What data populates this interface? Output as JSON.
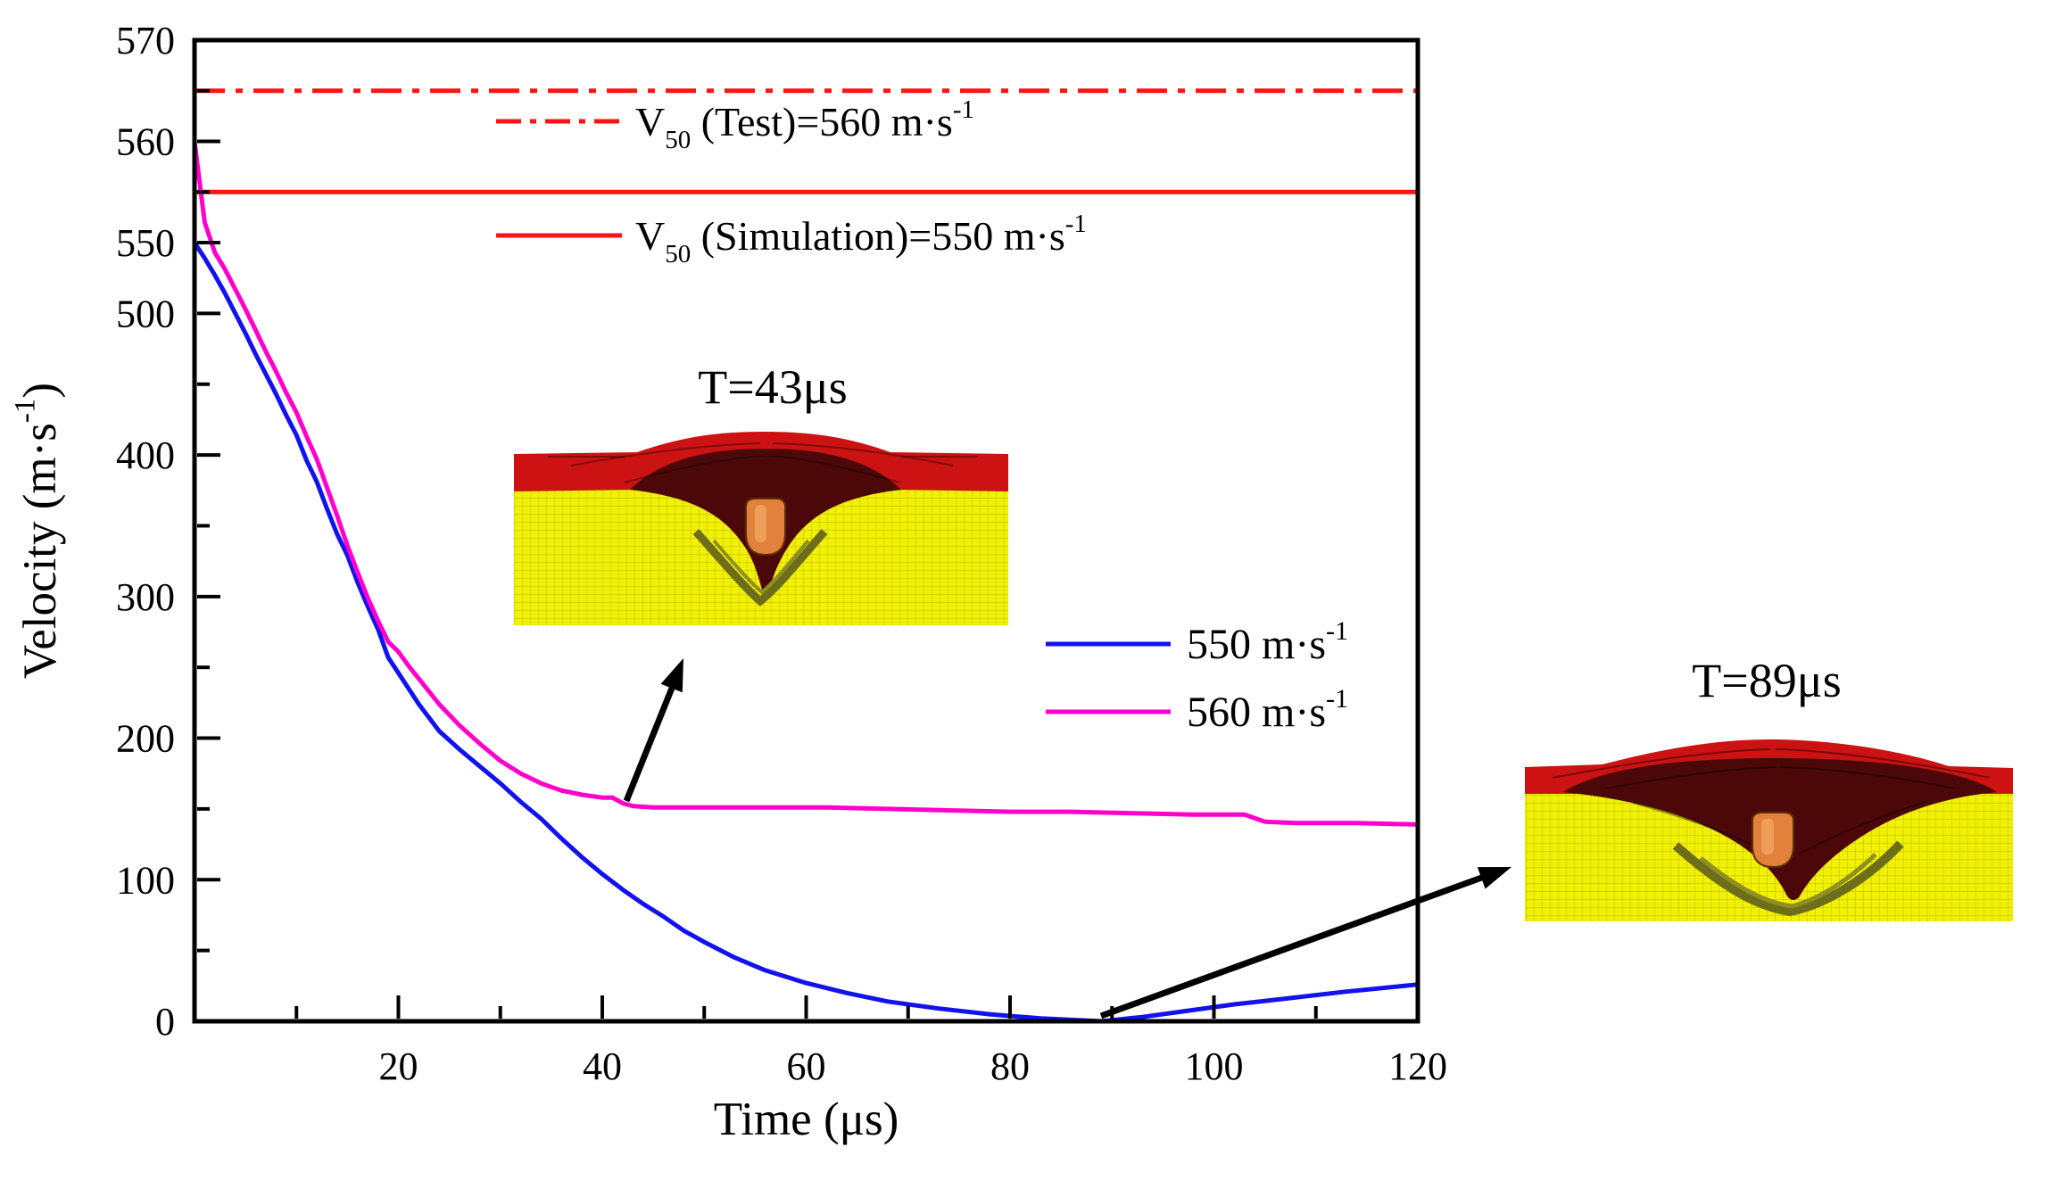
{
  "chart_data": {
    "type": "line",
    "title": "",
    "xlabel": "Time (μs)",
    "ylabel": "Velocity (m·s⁻¹)",
    "xlabel_parts": [
      {
        "t": "Time (μs)"
      }
    ],
    "ylabel_parts": [
      {
        "t": "Velocity (m·s"
      },
      {
        "type": "sup",
        "t": "-1"
      },
      {
        "t": ")"
      }
    ],
    "x_axis": {
      "min": 0,
      "max": 120,
      "major_ticks": [
        20,
        40,
        60,
        80,
        100,
        120
      ],
      "minor_ticks": [
        10,
        30,
        50,
        70,
        90,
        110
      ]
    },
    "y_axis": {
      "min": 0,
      "max": 570,
      "break_at": 550,
      "note": "scale magnified above 550",
      "major_ticks": [
        0,
        100,
        200,
        300,
        400,
        500,
        550,
        560,
        570
      ],
      "minor_ticks": [
        50,
        150,
        250,
        350,
        450,
        555,
        565
      ]
    },
    "grid": false,
    "legend_position": "center-right",
    "series": [
      {
        "name": "550 m·s⁻¹",
        "label_parts": [
          {
            "t": "550 m·s"
          },
          {
            "type": "sup",
            "t": "-1"
          }
        ],
        "color": "#1212ef",
        "points": [
          [
            0,
            550
          ],
          [
            1,
            539
          ],
          [
            2,
            527
          ],
          [
            3,
            514
          ],
          [
            4,
            500
          ],
          [
            5,
            486
          ],
          [
            6,
            471
          ],
          [
            7,
            457
          ],
          [
            8,
            443
          ],
          [
            9,
            428
          ],
          [
            10,
            414
          ],
          [
            11,
            396
          ],
          [
            12,
            381
          ],
          [
            13,
            362
          ],
          [
            14,
            344
          ],
          [
            15,
            329
          ],
          [
            16,
            310
          ],
          [
            17,
            293
          ],
          [
            18,
            277
          ],
          [
            19,
            257
          ],
          [
            20,
            246
          ],
          [
            22,
            224
          ],
          [
            24,
            205
          ],
          [
            26,
            192
          ],
          [
            28,
            180
          ],
          [
            30,
            168
          ],
          [
            32,
            155
          ],
          [
            34,
            143
          ],
          [
            36,
            129
          ],
          [
            38,
            116
          ],
          [
            40,
            104
          ],
          [
            42,
            93
          ],
          [
            44,
            83
          ],
          [
            46,
            74
          ],
          [
            48,
            64
          ],
          [
            50,
            56
          ],
          [
            53,
            45
          ],
          [
            56,
            36
          ],
          [
            60,
            27
          ],
          [
            64,
            20
          ],
          [
            68,
            14
          ],
          [
            73,
            9
          ],
          [
            78,
            5
          ],
          [
            83,
            2
          ],
          [
            86,
            1
          ],
          [
            89,
            0
          ],
          [
            93,
            3
          ],
          [
            97,
            7
          ],
          [
            102,
            12
          ],
          [
            107,
            16
          ],
          [
            113,
            21
          ],
          [
            120,
            26
          ]
        ]
      },
      {
        "name": "560 m·s⁻¹",
        "label_parts": [
          {
            "t": "560 m·s"
          },
          {
            "type": "sup",
            "t": "-1"
          }
        ],
        "color": "#ff00cd",
        "points": [
          [
            0,
            560
          ],
          [
            1,
            552
          ],
          [
            2,
            543
          ],
          [
            3,
            531
          ],
          [
            4,
            517
          ],
          [
            5,
            503
          ],
          [
            6,
            488
          ],
          [
            7,
            473
          ],
          [
            8,
            459
          ],
          [
            9,
            444
          ],
          [
            10,
            430
          ],
          [
            11,
            413
          ],
          [
            12,
            397
          ],
          [
            13,
            377
          ],
          [
            14,
            357
          ],
          [
            15,
            336
          ],
          [
            16,
            317
          ],
          [
            17,
            299
          ],
          [
            18,
            283
          ],
          [
            19,
            268
          ],
          [
            20,
            261
          ],
          [
            21,
            251
          ],
          [
            22,
            242
          ],
          [
            24,
            224
          ],
          [
            26,
            209
          ],
          [
            28,
            196
          ],
          [
            30,
            184
          ],
          [
            32,
            175
          ],
          [
            34,
            168
          ],
          [
            36,
            163
          ],
          [
            38,
            160
          ],
          [
            40,
            158
          ],
          [
            41,
            158
          ],
          [
            42,
            154
          ],
          [
            43,
            152
          ],
          [
            45,
            151
          ],
          [
            50,
            151
          ],
          [
            56,
            151
          ],
          [
            62,
            151
          ],
          [
            68,
            150
          ],
          [
            74,
            149
          ],
          [
            80,
            148
          ],
          [
            86,
            148
          ],
          [
            92,
            147
          ],
          [
            98,
            146
          ],
          [
            103,
            146
          ],
          [
            105,
            141
          ],
          [
            108,
            140
          ],
          [
            114,
            140
          ],
          [
            120,
            139
          ]
        ]
      }
    ],
    "reference_lines": [
      {
        "name": "v50-test",
        "text": "V₅₀ (Test)=560 m·s⁻¹",
        "label_parts": [
          {
            "t": "V"
          },
          {
            "type": "sub",
            "t": "50"
          },
          {
            "t": " (Test)=560 m·s"
          },
          {
            "type": "sup",
            "t": "-1"
          }
        ],
        "value": 560,
        "plotted_at": 565,
        "style": "dash-dot",
        "color": "#fb1414"
      },
      {
        "name": "v50-simulation",
        "text": "V₅₀ (Simulation)=550 m·s⁻¹",
        "label_parts": [
          {
            "t": "V"
          },
          {
            "type": "sub",
            "t": "50"
          },
          {
            "t": " (Simulation)=550 m·s"
          },
          {
            "type": "sup",
            "t": "-1"
          }
        ],
        "value": 550,
        "plotted_at": 555,
        "style": "solid",
        "color": "#fb1414"
      }
    ],
    "annotations": [
      {
        "id": "inset43",
        "text": "T=43μs",
        "points_to": {
          "series": "560 m·s⁻¹",
          "t": 43
        }
      },
      {
        "id": "inset89",
        "text": "T=89μs",
        "points_to": {
          "series": "550 m·s⁻¹",
          "t": 89
        }
      }
    ]
  },
  "insets": {
    "left": {
      "label": "T=43μs"
    },
    "right": {
      "label": "T=89μs"
    }
  },
  "inset_colors": {
    "backing": "#f2f005",
    "backing_grid": "#c3c300",
    "fabric": "#cc1212",
    "deformed_fabric": "#4c0808",
    "crush_zone": "#6e6e1a",
    "crush_zone_light": "#8f8f22",
    "projectile": "#e2813b",
    "projectile_edge": "#5e2e06",
    "projectile_highlight": "#f0a35e"
  },
  "palette": {
    "axis": "#000000",
    "blue_series": "#1212ef",
    "magenta_series": "#ff00cd",
    "red_reference": "#fb1414"
  }
}
